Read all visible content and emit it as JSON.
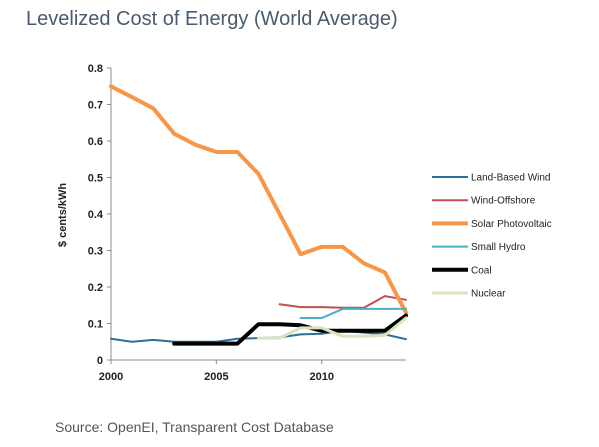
{
  "header": {
    "title": "Levelized Cost of Energy (World Average)"
  },
  "footer": {
    "source": "Source: OpenEI, Transparent Cost Database"
  },
  "chart_data": {
    "type": "line",
    "title": "Levelized Cost of Energy (World Average)",
    "xlabel": "",
    "ylabel": "$ cents/kWh",
    "xlim": [
      2000,
      2014
    ],
    "ylim": [
      0,
      0.8
    ],
    "xticks": [
      2000,
      2005,
      2010
    ],
    "yticks": [
      0,
      0.1,
      0.2,
      0.3,
      0.4,
      0.5,
      0.6,
      0.7,
      0.8
    ],
    "ytick_labels": [
      "0",
      "0.1",
      "0.2",
      "0.3",
      "0.4",
      "0.5",
      "0.6",
      "0.7",
      "0.8"
    ],
    "grid": false,
    "legend_position": "right",
    "series": [
      {
        "name": "Land-Based Wind",
        "color": "#2e6f95",
        "width": 2,
        "points": [
          [
            2000,
            0.058
          ],
          [
            2001,
            0.05
          ],
          [
            2002,
            0.055
          ],
          [
            2003,
            0.05
          ],
          [
            2004,
            0.05
          ],
          [
            2005,
            0.05
          ],
          [
            2006,
            0.058
          ],
          [
            2007,
            0.06
          ],
          [
            2008,
            0.062
          ],
          [
            2009,
            0.07
          ],
          [
            2010,
            0.072
          ],
          [
            2011,
            0.08
          ],
          [
            2012,
            0.075
          ],
          [
            2013,
            0.07
          ],
          [
            2014,
            0.057
          ]
        ]
      },
      {
        "name": "Wind-Offshore",
        "color": "#c0504d",
        "width": 2,
        "points": [
          [
            2008,
            0.153
          ],
          [
            2009,
            0.145
          ],
          [
            2010,
            0.145
          ],
          [
            2011,
            0.143
          ],
          [
            2012,
            0.143
          ],
          [
            2013,
            0.175
          ],
          [
            2014,
            0.165
          ]
        ]
      },
      {
        "name": "Solar Photovoltaic",
        "color": "#f79646",
        "width": 4,
        "points": [
          [
            2000,
            0.75
          ],
          [
            2001,
            0.72
          ],
          [
            2002,
            0.69
          ],
          [
            2003,
            0.62
          ],
          [
            2004,
            0.59
          ],
          [
            2005,
            0.57
          ],
          [
            2006,
            0.57
          ],
          [
            2007,
            0.51
          ],
          [
            2008,
            0.4
          ],
          [
            2009,
            0.29
          ],
          [
            2010,
            0.31
          ],
          [
            2011,
            0.31
          ],
          [
            2012,
            0.265
          ],
          [
            2013,
            0.24
          ],
          [
            2014,
            0.13
          ]
        ]
      },
      {
        "name": "Small Hydro",
        "color": "#4bacc6",
        "width": 2,
        "points": [
          [
            2009,
            0.115
          ],
          [
            2010,
            0.115
          ],
          [
            2011,
            0.14
          ],
          [
            2012,
            0.14
          ],
          [
            2013,
            0.14
          ],
          [
            2014,
            0.14
          ]
        ]
      },
      {
        "name": "Coal",
        "color": "#000000",
        "width": 4,
        "points": [
          [
            2003,
            0.045
          ],
          [
            2004,
            0.045
          ],
          [
            2005,
            0.045
          ],
          [
            2006,
            0.045
          ],
          [
            2007,
            0.098
          ],
          [
            2008,
            0.098
          ],
          [
            2009,
            0.095
          ],
          [
            2010,
            0.08
          ],
          [
            2011,
            0.08
          ],
          [
            2012,
            0.08
          ],
          [
            2013,
            0.08
          ],
          [
            2014,
            0.122
          ]
        ]
      },
      {
        "name": "Nuclear",
        "color": "#d7e4bd",
        "width": 3,
        "points": [
          [
            2007,
            0.06
          ],
          [
            2008,
            0.06
          ],
          [
            2009,
            0.088
          ],
          [
            2010,
            0.088
          ],
          [
            2011,
            0.065
          ],
          [
            2012,
            0.065
          ],
          [
            2013,
            0.068
          ],
          [
            2014,
            0.115
          ]
        ]
      }
    ]
  }
}
